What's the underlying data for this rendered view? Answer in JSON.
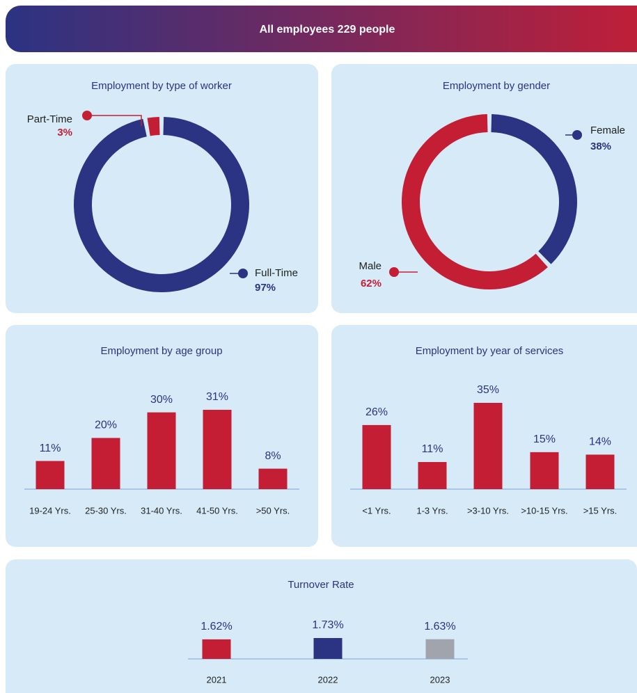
{
  "header": {
    "title": "All employees 229 people"
  },
  "chart_data": [
    {
      "type": "donut",
      "title": "Employment by type of worker",
      "categories": [
        "Full-Time",
        "Part-Time"
      ],
      "values": [
        97,
        3
      ],
      "value_labels": [
        "97%",
        "3%"
      ],
      "colors": [
        "#2b3383",
        "#c41e35"
      ]
    },
    {
      "type": "donut",
      "title": "Employment by gender",
      "categories": [
        "Female",
        "Male"
      ],
      "values": [
        38,
        62
      ],
      "value_labels": [
        "38%",
        "62%"
      ],
      "colors": [
        "#2b3383",
        "#c41e35"
      ]
    },
    {
      "type": "bar",
      "title": "Employment by age group",
      "categories": [
        "19-24 Yrs.",
        "25-30 Yrs.",
        "31-40 Yrs.",
        "41-50 Yrs.",
        ">50 Yrs."
      ],
      "values": [
        11,
        20,
        30,
        31,
        8
      ],
      "value_labels": [
        "11%",
        "20%",
        "30%",
        "31%",
        "8%"
      ],
      "colors": [
        "#c41e35",
        "#c41e35",
        "#c41e35",
        "#c41e35",
        "#c41e35"
      ]
    },
    {
      "type": "bar",
      "title": "Employment by year of services",
      "categories": [
        "<1 Yrs.",
        "1-3 Yrs.",
        ">3-10 Yrs.",
        ">10-15 Yrs.",
        ">15 Yrs."
      ],
      "values": [
        26,
        11,
        35,
        15,
        14
      ],
      "value_labels": [
        "26%",
        "11%",
        "35%",
        "15%",
        "14%"
      ],
      "colors": [
        "#c41e35",
        "#c41e35",
        "#c41e35",
        "#c41e35",
        "#c41e35"
      ]
    },
    {
      "type": "bar",
      "title": "Turnover Rate",
      "categories": [
        "2021",
        "2022",
        "2023"
      ],
      "values": [
        1.62,
        1.73,
        1.63
      ],
      "value_labels": [
        "1.62%",
        "1.73%",
        "1.63%"
      ],
      "colors": [
        "#c41e35",
        "#2b3383",
        "#a1a3ad"
      ]
    }
  ]
}
